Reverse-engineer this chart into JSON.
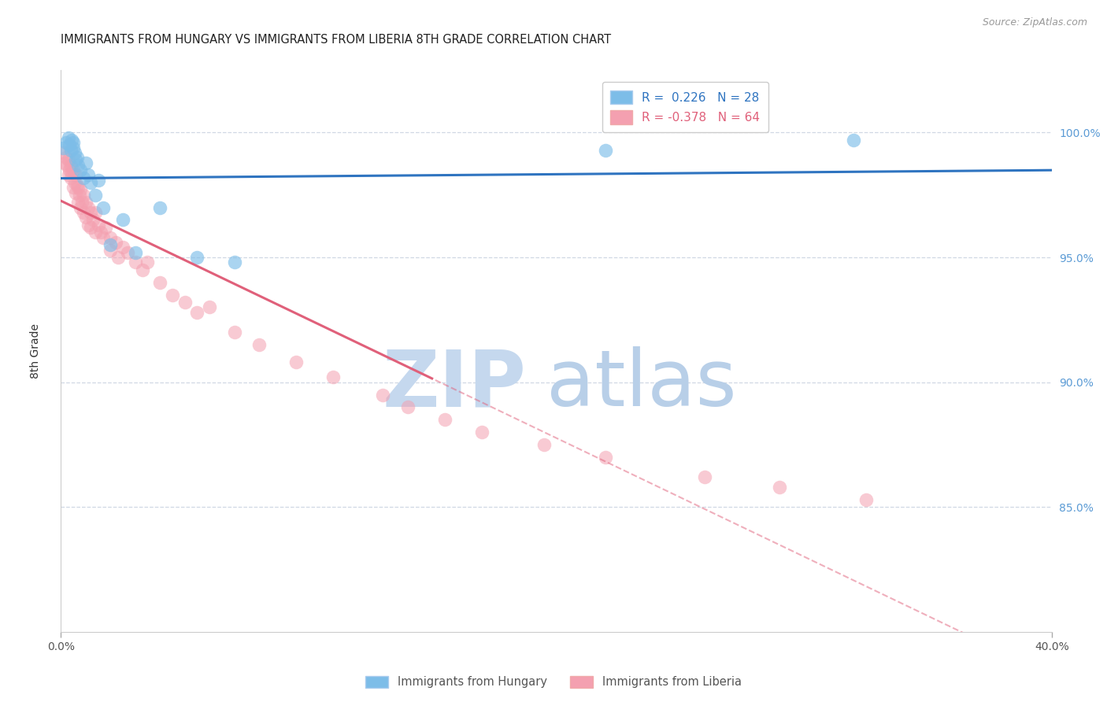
{
  "title": "IMMIGRANTS FROM HUNGARY VS IMMIGRANTS FROM LIBERIA 8TH GRADE CORRELATION CHART",
  "source": "Source: ZipAtlas.com",
  "ylabel": "8th Grade",
  "right_yticks": [
    100.0,
    95.0,
    90.0,
    85.0
  ],
  "xmin": 0.0,
  "xmax": 40.0,
  "ymin": 80.0,
  "ymax": 102.5,
  "legend_hungary": "R =  0.226   N = 28",
  "legend_liberia": "R = -0.378   N = 64",
  "color_hungary": "#7dbde8",
  "color_liberia": "#f4a0b0",
  "trendline_hungary_color": "#2f74c0",
  "trendline_liberia_color": "#e0607a",
  "hungary_scatter_x": [
    0.1,
    0.2,
    0.3,
    0.35,
    0.4,
    0.45,
    0.5,
    0.5,
    0.55,
    0.6,
    0.65,
    0.7,
    0.8,
    0.9,
    1.0,
    1.1,
    1.2,
    1.4,
    1.5,
    1.7,
    2.0,
    2.5,
    3.0,
    4.0,
    5.5,
    7.0,
    22.0,
    32.0
  ],
  "hungary_scatter_y": [
    99.4,
    99.6,
    99.8,
    99.5,
    99.3,
    99.7,
    99.6,
    99.4,
    99.2,
    98.9,
    99.0,
    98.7,
    98.5,
    98.2,
    98.8,
    98.3,
    98.0,
    97.5,
    98.1,
    97.0,
    95.5,
    96.5,
    95.2,
    97.0,
    95.0,
    94.8,
    99.3,
    99.7
  ],
  "liberia_scatter_x": [
    0.1,
    0.15,
    0.2,
    0.25,
    0.3,
    0.3,
    0.35,
    0.4,
    0.4,
    0.45,
    0.5,
    0.5,
    0.55,
    0.6,
    0.6,
    0.65,
    0.7,
    0.7,
    0.75,
    0.8,
    0.8,
    0.85,
    0.9,
    0.9,
    1.0,
    1.0,
    1.1,
    1.1,
    1.2,
    1.2,
    1.3,
    1.4,
    1.4,
    1.5,
    1.6,
    1.7,
    1.8,
    2.0,
    2.0,
    2.2,
    2.3,
    2.5,
    2.7,
    3.0,
    3.3,
    3.5,
    4.0,
    4.5,
    5.0,
    5.5,
    6.0,
    7.0,
    8.0,
    9.5,
    11.0,
    13.0,
    14.0,
    15.5,
    17.0,
    19.5,
    22.0,
    26.0,
    29.0,
    32.5
  ],
  "liberia_scatter_y": [
    99.2,
    98.8,
    99.0,
    98.7,
    98.9,
    98.3,
    98.5,
    98.7,
    98.2,
    98.4,
    98.5,
    97.8,
    98.0,
    98.3,
    97.6,
    97.9,
    97.8,
    97.2,
    97.5,
    97.7,
    97.0,
    97.2,
    97.5,
    96.8,
    97.2,
    96.6,
    97.0,
    96.3,
    96.8,
    96.2,
    96.5,
    96.8,
    96.0,
    96.3,
    96.0,
    95.8,
    96.2,
    95.8,
    95.3,
    95.6,
    95.0,
    95.4,
    95.2,
    94.8,
    94.5,
    94.8,
    94.0,
    93.5,
    93.2,
    92.8,
    93.0,
    92.0,
    91.5,
    90.8,
    90.2,
    89.5,
    89.0,
    88.5,
    88.0,
    87.5,
    87.0,
    86.2,
    85.8,
    85.3
  ],
  "trendline_solid_end": 15.0,
  "grid_color": "#d0d8e4",
  "background_color": "#ffffff",
  "watermark_zip": "ZIP",
  "watermark_atlas": "atlas",
  "watermark_color_zip": "#c5d8ee",
  "watermark_color_atlas": "#b8cfe8"
}
